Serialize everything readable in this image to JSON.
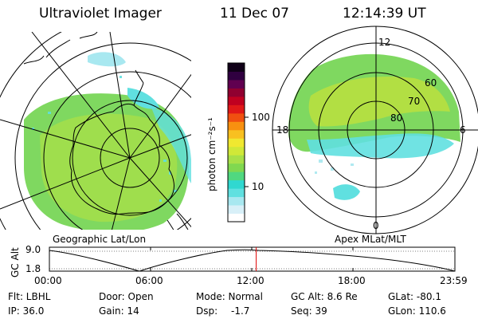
{
  "header": {
    "title": "Ultraviolet Imager",
    "date": "11 Dec 07",
    "time": "12:14:39 UT"
  },
  "colorbar": {
    "unit_label": "photon cm⁻²s⁻¹",
    "tick_100": "100",
    "tick_10": "10",
    "colors": [
      "#ffffff",
      "#d8f0f8",
      "#a8e8f0",
      "#60e0e0",
      "#30d8d0",
      "#50d880",
      "#80d850",
      "#a8e048",
      "#d0e838",
      "#f0e830",
      "#f8c020",
      "#f89010",
      "#f05010",
      "#e01818",
      "#c00020",
      "#900030",
      "#600050",
      "#300040",
      "#100018"
    ]
  },
  "left_panel": {
    "caption": "Geographic Lat/Lon"
  },
  "right_panel": {
    "caption": "Apex MLat/MLT",
    "mlt_12": "12",
    "mlt_18": "18",
    "mlt_6": "6",
    "mlt_0": "0",
    "lat_60": "60",
    "lat_70": "70",
    "lat_80": "80"
  },
  "timeline": {
    "ylabel": "GC Alt",
    "ymax": "9.0",
    "ymin": "1.8",
    "ticks": [
      "00:00",
      "06:00",
      "12:00",
      "18:00",
      "23:59"
    ],
    "current_marker_hours": 12.24
  },
  "status": {
    "flt": "Flt: LBHL",
    "ip": "IP: 36.0",
    "door": "Door: Open",
    "gain": "Gain: 14",
    "mode": "Mode: Normal",
    "dsp_label": "Dsp:",
    "dsp_value": "-1.7",
    "gcalt": "GC Alt: 8.6 Re",
    "seq": "Seq: 39",
    "glat": "GLat: -80.1",
    "glon": "GLon: 110.6"
  }
}
